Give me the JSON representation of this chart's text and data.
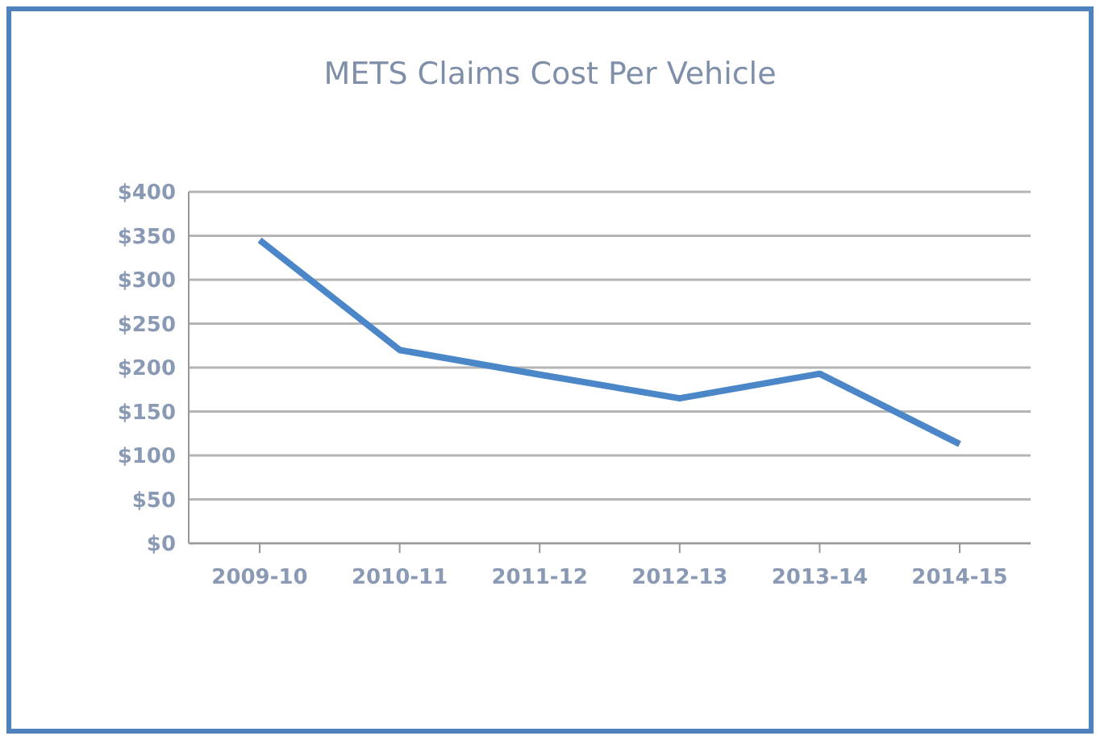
{
  "chart_data": {
    "type": "line",
    "title": "METS Claims Cost Per Vehicle",
    "categories": [
      "2009-10",
      "2010-11",
      "2011-12",
      "2012-13",
      "2013-14",
      "2014-15"
    ],
    "series": [
      {
        "color": "#4a86c8",
        "values": [
          345,
          220,
          192,
          165,
          193,
          113
        ]
      }
    ],
    "ylim": [
      0,
      400
    ],
    "yticks": [
      {
        "value": 0,
        "label": "$0"
      },
      {
        "value": 50,
        "label": "$50"
      },
      {
        "value": 100,
        "label": "$100"
      },
      {
        "value": 150,
        "label": "$150"
      },
      {
        "value": 200,
        "label": "$200"
      },
      {
        "value": 250,
        "label": "$250"
      },
      {
        "value": 300,
        "label": "$300"
      },
      {
        "value": 350,
        "label": "$350"
      },
      {
        "value": 400,
        "label": "$400"
      }
    ],
    "grid": "y",
    "legend": false,
    "marker": "none",
    "line_style": "solid"
  }
}
